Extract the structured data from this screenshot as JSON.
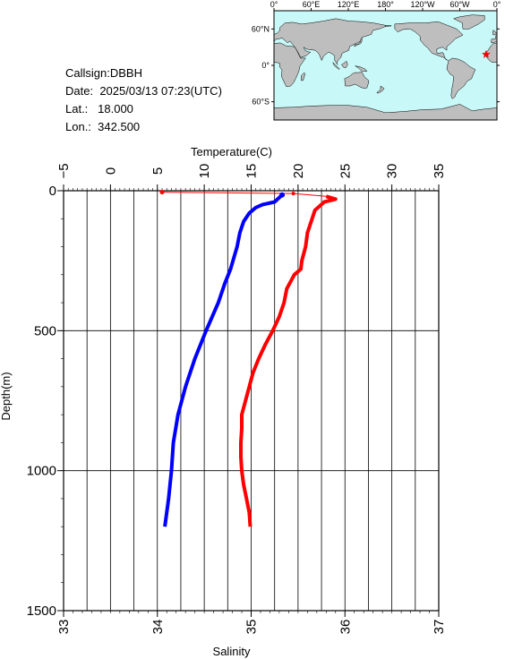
{
  "station": {
    "callsign_label": "Callsign:",
    "callsign": "DBBH",
    "date_label": "Date:",
    "date": "2025/03/13 07:23(UTC)",
    "lat_label": "Lat.:",
    "lat": "18.000",
    "lon_label": "Lon.:",
    "lon": "342.500"
  },
  "map": {
    "lon_ticks": [
      "0°",
      "60°E",
      "120°E",
      "180°",
      "120°W",
      "60°W",
      "0°"
    ],
    "lat_ticks": [
      "60°N",
      "0°",
      "60°S"
    ],
    "marker_lat": 18.0,
    "marker_lon": 342.5,
    "ocean_color": "#c8f8f8",
    "land_color": "#bebebe",
    "marker_color": "#ff0000"
  },
  "chart_data": {
    "type": "line",
    "top_xlabel": "Temperature(C)",
    "bottom_xlabel": "Salinity",
    "ylabel": "Depth(m)",
    "temperature_lim": [
      -5,
      35
    ],
    "temperature_ticks": [
      -5,
      0,
      5,
      10,
      15,
      20,
      25,
      30,
      35
    ],
    "salinity_lim": [
      33,
      37
    ],
    "salinity_ticks": [
      33,
      34,
      35,
      36,
      37
    ],
    "depth_lim": [
      0,
      1500
    ],
    "depth_ticks": [
      0,
      500,
      1000,
      1500
    ],
    "grid": true,
    "series": [
      {
        "quantity": "temperature",
        "axis": "top",
        "color": "#ff0000",
        "points": [
          [
            5.5,
            5
          ],
          [
            19.5,
            10
          ],
          [
            23.0,
            20
          ],
          [
            24.0,
            30
          ],
          [
            22.8,
            40
          ],
          [
            21.8,
            70
          ],
          [
            21.5,
            100
          ],
          [
            21.0,
            150
          ],
          [
            20.8,
            200
          ],
          [
            20.4,
            250
          ],
          [
            20.3,
            280
          ],
          [
            19.6,
            300
          ],
          [
            18.8,
            350
          ],
          [
            18.5,
            400
          ],
          [
            18.0,
            450
          ],
          [
            17.3,
            500
          ],
          [
            16.5,
            550
          ],
          [
            15.8,
            600
          ],
          [
            15.2,
            650
          ],
          [
            14.8,
            700
          ],
          [
            14.4,
            750
          ],
          [
            14.0,
            800
          ],
          [
            14.0,
            850
          ],
          [
            13.9,
            900
          ],
          [
            13.9,
            950
          ],
          [
            14.0,
            1000
          ],
          [
            14.2,
            1050
          ],
          [
            14.5,
            1100
          ],
          [
            14.8,
            1150
          ],
          [
            14.9,
            1200
          ]
        ]
      },
      {
        "quantity": "salinity",
        "axis": "bottom",
        "color": "#0000ff",
        "points": [
          [
            35.33,
            15
          ],
          [
            35.25,
            40
          ],
          [
            35.12,
            50
          ],
          [
            35.05,
            60
          ],
          [
            34.98,
            80
          ],
          [
            34.92,
            110
          ],
          [
            34.88,
            150
          ],
          [
            34.85,
            200
          ],
          [
            34.78,
            280
          ],
          [
            34.72,
            330
          ],
          [
            34.65,
            400
          ],
          [
            34.52,
            500
          ],
          [
            34.4,
            600
          ],
          [
            34.3,
            700
          ],
          [
            34.22,
            800
          ],
          [
            34.17,
            900
          ],
          [
            34.15,
            1000
          ],
          [
            34.12,
            1100
          ],
          [
            34.08,
            1200
          ]
        ]
      }
    ]
  }
}
